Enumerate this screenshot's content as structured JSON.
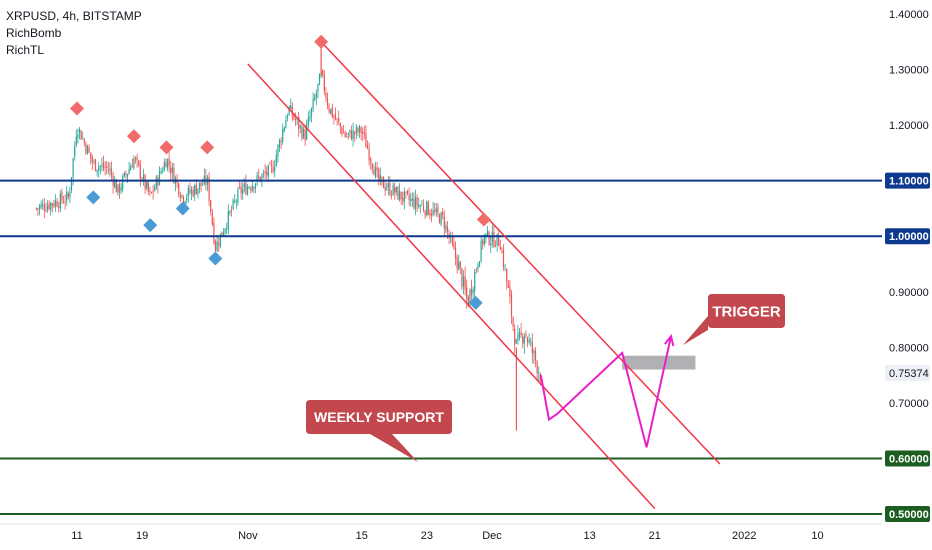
{
  "legend": {
    "symbol_line": "XRPUSD, 4h, BITSTAMP",
    "indicators": [
      "RichBomb",
      "RichTL"
    ]
  },
  "colors": {
    "background": "#ffffff",
    "candle_up": "#26a69a",
    "candle_down": "#ef5350",
    "resistance_line": "#0d3a8f",
    "support_line": "#1b5e20",
    "channel": "#f23645",
    "projection": "#e91ec8",
    "callout": "#c2484d",
    "marker_top": "#f26b6b",
    "marker_bottom": "#4a9ad4",
    "trigger_box": "#a9a9ad",
    "current_price_tag": "#eceff3"
  },
  "chart_data": {
    "type": "candlestick",
    "symbol": "XRPUSD",
    "timeframe": "4h",
    "exchange": "BITSTAMP",
    "y_axis": {
      "ticks": [
        "1.40000",
        "1.30000",
        "1.20000",
        "1.10000",
        "1.00000",
        "0.90000",
        "0.80000",
        "0.75374",
        "0.70000",
        "0.60000",
        "0.50000"
      ],
      "range": [
        0.48,
        1.42
      ]
    },
    "x_axis": {
      "ticks": [
        "11",
        "19",
        "Nov",
        "15",
        "23",
        "Dec",
        "13",
        "21",
        "2022",
        "10"
      ]
    },
    "x_range": [
      "2021-10-06",
      "2022-01-12"
    ],
    "price_path": [
      {
        "date": "2021-10-06",
        "price": 1.05
      },
      {
        "date": "2021-10-10",
        "price": 1.07
      },
      {
        "date": "2021-10-11",
        "price": 1.2
      },
      {
        "date": "2021-10-13",
        "price": 1.13
      },
      {
        "date": "2021-10-15",
        "price": 1.12
      },
      {
        "date": "2021-10-16",
        "price": 1.08
      },
      {
        "date": "2021-10-18",
        "price": 1.14
      },
      {
        "date": "2021-10-20",
        "price": 1.07
      },
      {
        "date": "2021-10-22",
        "price": 1.14
      },
      {
        "date": "2021-10-24",
        "price": 1.07
      },
      {
        "date": "2021-10-27",
        "price": 1.1
      },
      {
        "date": "2021-10-28",
        "price": 0.98
      },
      {
        "date": "2021-10-31",
        "price": 1.08
      },
      {
        "date": "2021-11-04",
        "price": 1.12
      },
      {
        "date": "2021-11-06",
        "price": 1.23
      },
      {
        "date": "2021-11-08",
        "price": 1.18
      },
      {
        "date": "2021-11-10",
        "price": 1.29
      },
      {
        "date": "2021-11-11",
        "price": 1.23
      },
      {
        "date": "2021-11-13",
        "price": 1.18
      },
      {
        "date": "2021-11-15",
        "price": 1.19
      },
      {
        "date": "2021-11-17",
        "price": 1.1
      },
      {
        "date": "2021-11-20",
        "price": 1.07
      },
      {
        "date": "2021-11-23",
        "price": 1.05
      },
      {
        "date": "2021-11-25",
        "price": 1.03
      },
      {
        "date": "2021-11-27",
        "price": 0.94
      },
      {
        "date": "2021-11-28",
        "price": 0.88
      },
      {
        "date": "2021-11-30",
        "price": 1.0
      },
      {
        "date": "2021-12-02",
        "price": 0.99
      },
      {
        "date": "2021-12-03",
        "price": 0.9
      },
      {
        "date": "2021-12-04",
        "price": 0.8
      },
      {
        "date": "2021-12-05",
        "price": 0.83
      },
      {
        "date": "2021-12-06",
        "price": 0.79
      },
      {
        "date": "2021-12-07",
        "price": 0.75
      }
    ],
    "notable_wicks": [
      {
        "date": "2021-11-10",
        "high": 1.35
      },
      {
        "date": "2021-12-04",
        "low": 0.65
      }
    ],
    "horizontal_levels": [
      {
        "price": 1.1,
        "label": "1.10000",
        "kind": "resistance"
      },
      {
        "price": 1.0,
        "label": "1.00000",
        "kind": "resistance"
      },
      {
        "price": 0.6,
        "label": "0.60000",
        "kind": "support"
      },
      {
        "price": 0.5,
        "label": "0.50000",
        "kind": "support"
      }
    ],
    "current_price": {
      "price": 0.75374,
      "label": "0.75374"
    },
    "top_markers": [
      {
        "date": "2021-10-11",
        "price": 1.23
      },
      {
        "date": "2021-10-18",
        "price": 1.18
      },
      {
        "date": "2021-10-22",
        "price": 1.16
      },
      {
        "date": "2021-10-27",
        "price": 1.16
      },
      {
        "date": "2021-11-10",
        "price": 1.35
      },
      {
        "date": "2021-11-30",
        "price": 1.03
      }
    ],
    "bottom_markers": [
      {
        "date": "2021-10-13",
        "price": 1.07
      },
      {
        "date": "2021-10-20",
        "price": 1.02
      },
      {
        "date": "2021-10-24",
        "price": 1.05
      },
      {
        "date": "2021-10-28",
        "price": 0.96
      },
      {
        "date": "2021-11-29",
        "price": 0.88
      }
    ],
    "channel_lines": [
      {
        "from": {
          "date": "2021-11-10",
          "price": 1.35
        },
        "to": {
          "date": "2021-12-29",
          "price": 0.59
        }
      },
      {
        "from": {
          "date": "2021-11-01",
          "price": 1.31
        },
        "to": {
          "date": "2021-12-21",
          "price": 0.51
        }
      }
    ],
    "projection_path": [
      {
        "date": "2021-12-07",
        "price": 0.75
      },
      {
        "date": "2021-12-08",
        "price": 0.67
      },
      {
        "date": "2021-12-09",
        "price": 0.68
      },
      {
        "date": "2021-12-17",
        "price": 0.79
      },
      {
        "date": "2021-12-20",
        "price": 0.62
      },
      {
        "date": "2021-12-23",
        "price": 0.82
      }
    ],
    "trigger_zone": {
      "from_date": "2021-12-17",
      "to_date": "2021-12-26",
      "price_low": 0.76,
      "price_high": 0.785
    },
    "annotations": [
      {
        "text": "TRIGGER",
        "anchor": {
          "date": "2021-12-24",
          "price": 0.8
        }
      },
      {
        "text": "WEEKLY SUPPORT",
        "anchor": {
          "date": "2021-11-21",
          "price": 0.6
        }
      }
    ]
  }
}
